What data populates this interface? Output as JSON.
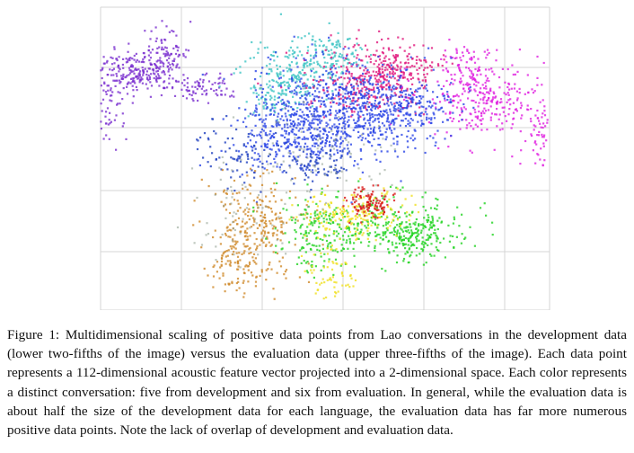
{
  "figure": {
    "caption": "Figure 1: Multidimensional scaling of positive data points from Lao conversations in the development data (lower two-fifths of the image) versus the evaluation data (upper three-fifths of the image). Each data point represents a 112-dimensional acoustic feature vector projected into a 2-dimensional space. Each color represents a distinct conversation: five from development and six from evaluation. In general, while the evaluation data is about half the size of the development data for each language, the evaluation data has far more numerous positive data points. Note the lack of overlap of development and evaluation data."
  },
  "chart_data": {
    "type": "scatter",
    "grid": true,
    "axes_labels_shown": false,
    "clusters": [
      {
        "group": "evaluation",
        "color": "#7a2fd0"
      },
      {
        "group": "evaluation",
        "color": "#2a45e6"
      },
      {
        "group": "evaluation",
        "color": "#3fc4c4"
      },
      {
        "group": "evaluation",
        "color": "#e0147a"
      },
      {
        "group": "evaluation",
        "color": "#e020e0"
      },
      {
        "group": "evaluation",
        "color": "#1e3fbf"
      },
      {
        "group": "development",
        "color": "#d08a2a"
      },
      {
        "group": "development",
        "color": "#22d322"
      },
      {
        "group": "development",
        "color": "#f0e020"
      },
      {
        "group": "development",
        "color": "#d81818"
      },
      {
        "group": "development",
        "color": "#8a9a8a"
      }
    ]
  }
}
